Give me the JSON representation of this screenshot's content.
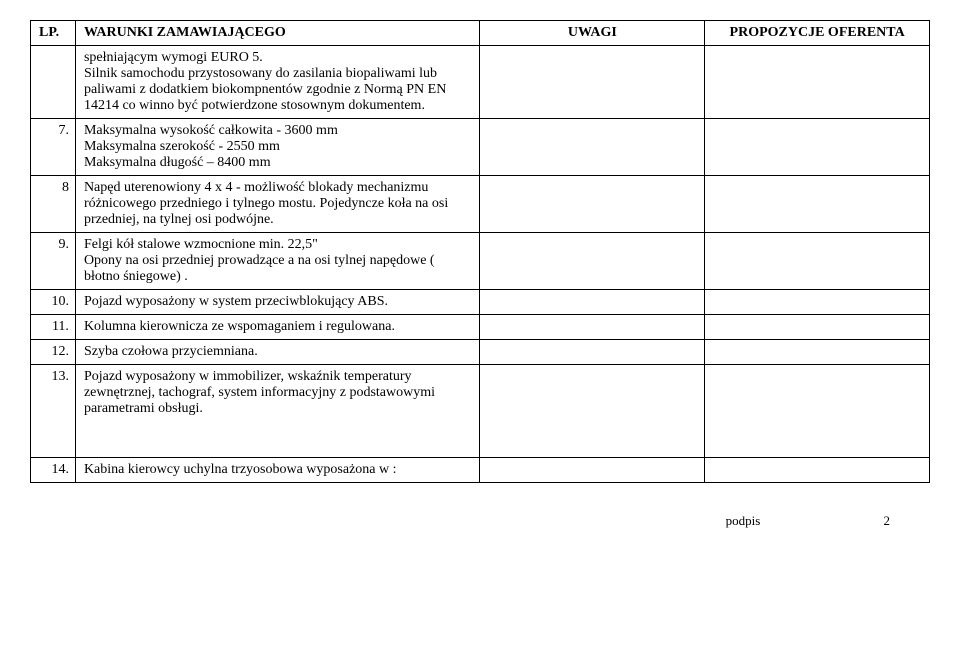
{
  "header": {
    "lp": "LP.",
    "warunki": "WARUNKI  ZAMAWIAJĄCEGO",
    "uwagi": "UWAGI",
    "propozycje": "PROPOZYCJE OFERENTA"
  },
  "rows": [
    {
      "lp": "",
      "text": "spełniającym wymogi  EURO 5.\nSilnik samochodu przystosowany do zasilania  biopaliwami lub paliwami z dodatkiem biokompnentów zgodnie z    Normą PN EN 14214 co winno być potwierdzone           stosownym dokumentem."
    },
    {
      "lp": "7.",
      "text": "Maksymalna wysokość całkowita - 3600 mm\nMaksymalna szerokość - 2550 mm\nMaksymalna długość – 8400 mm"
    },
    {
      "lp": "8",
      "text": "Napęd  uterenowiony 4 x 4 - możliwość blokady mechanizmu różnicowego przedniego i tylnego mostu. Pojedyncze koła na osi przedniej, na tylnej osi podwójne."
    },
    {
      "lp": "9.",
      "text": "Felgi kół stalowe wzmocnione min. 22,5\"\nOpony na osi przedniej prowadzące a na osi tylnej          napędowe ( błotno śniegowe) ."
    },
    {
      "lp": "10.",
      "text": "Pojazd wyposażony w system przeciwblokujący ABS."
    },
    {
      "lp": "11.",
      "text": "Kolumna kierownicza ze wspomaganiem i regulowana."
    },
    {
      "lp": "12.",
      "text": "Szyba czołowa przyciemniana."
    },
    {
      "lp": "13.",
      "text": "Pojazd wyposażony w immobilizer, wskaźnik temperatury zewnętrznej, tachograf, system  informacyjny z podstawowymi parametrami obsługi."
    },
    {
      "lp": "14.",
      "text": "Kabina kierowcy uchylna trzyosobowa  wyposażona w :"
    }
  ],
  "footer": {
    "label": "podpis",
    "page": "2"
  }
}
